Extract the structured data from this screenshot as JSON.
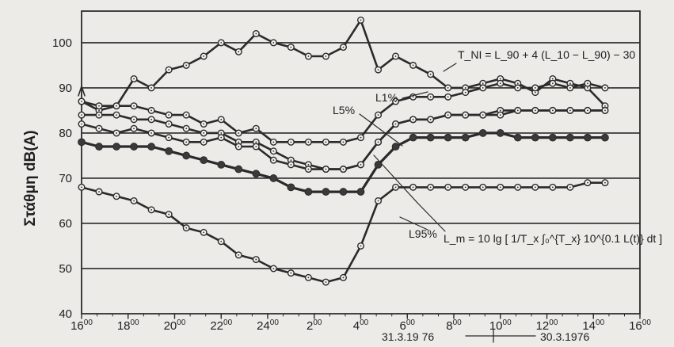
{
  "chart_data": {
    "type": "line",
    "ylabel": "Στάθμη dB(A)",
    "ylim": [
      40,
      107
    ],
    "yticks": [
      40,
      50,
      60,
      70,
      80,
      90,
      100
    ],
    "xlim": [
      0,
      30
    ],
    "xticks": [
      {
        "x": 0,
        "hour": "16",
        "min": "00"
      },
      {
        "x": 2.667,
        "hour": "18",
        "min": "00"
      },
      {
        "x": 5.333,
        "hour": "20",
        "min": "00"
      },
      {
        "x": 8,
        "hour": "22",
        "min": "00"
      },
      {
        "x": 10.667,
        "hour": "24",
        "min": "00"
      },
      {
        "x": 13.333,
        "hour": "2",
        "min": "00"
      },
      {
        "x": 16,
        "hour": "4",
        "min": "00"
      },
      {
        "x": 18.667,
        "hour": "6",
        "min": "00"
      },
      {
        "x": 21.333,
        "hour": "8",
        "min": "00"
      },
      {
        "x": 24,
        "hour": "10",
        "min": "00"
      },
      {
        "x": 26.667,
        "hour": "12",
        "min": "00"
      },
      {
        "x": 29.333,
        "hour": "14",
        "min": "00"
      },
      {
        "x": 32,
        "hour": "16",
        "min": "00"
      }
    ],
    "date_left": "31.3.19 76",
    "date_right": "30.3.1976",
    "grid": true,
    "series": [
      {
        "name": "T_NI",
        "marker": "open",
        "x": [
          0,
          1,
          2,
          3,
          4,
          5,
          6,
          7,
          8,
          9,
          10,
          11,
          12,
          13,
          14,
          15,
          16,
          17,
          18,
          19,
          20,
          21,
          22,
          23,
          24,
          25,
          26,
          27,
          28,
          29,
          30
        ],
        "values": [
          87,
          85,
          86,
          92,
          90,
          94,
          95,
          97,
          100,
          98,
          102,
          100,
          99,
          97,
          97,
          99,
          105,
          94,
          97,
          95,
          93,
          90,
          90,
          91,
          92,
          91,
          89,
          92,
          91,
          90,
          86
        ]
      },
      {
        "name": "L1%",
        "marker": "open",
        "x": [
          0,
          1,
          2,
          3,
          4,
          5,
          6,
          7,
          8,
          9,
          10,
          11,
          12,
          13,
          14,
          15,
          16,
          17,
          18,
          19,
          20,
          21,
          22,
          23,
          24,
          25,
          26,
          27,
          28,
          29,
          30
        ],
        "values": [
          87,
          86,
          86,
          86,
          85,
          84,
          84,
          82,
          83,
          80,
          81,
          78,
          78,
          78,
          78,
          78,
          79,
          84,
          87,
          88,
          88,
          88,
          89,
          90,
          91,
          90,
          90,
          91,
          90,
          91,
          90
        ]
      },
      {
        "name": "L5%",
        "marker": "open",
        "x": [
          0,
          1,
          2,
          3,
          4,
          5,
          6,
          7,
          8,
          9,
          10,
          11,
          12,
          13,
          14,
          15,
          16,
          17,
          18,
          19,
          20,
          21,
          22,
          23,
          24,
          25,
          26,
          27,
          28,
          29,
          30
        ],
        "values": [
          84,
          84,
          84,
          83,
          83,
          82,
          81,
          80,
          80,
          78,
          78,
          76,
          74,
          73,
          72,
          72,
          73,
          78,
          82,
          83,
          83,
          84,
          84,
          84,
          85,
          85,
          85,
          85,
          85,
          85,
          85
        ]
      },
      {
        "name": "L_m",
        "marker": "open",
        "x": [
          0,
          1,
          2,
          3,
          4,
          5,
          6,
          7,
          8,
          9,
          10,
          11,
          12,
          13,
          14,
          15,
          16,
          17,
          18,
          19,
          20,
          21,
          22,
          23,
          24,
          25,
          26,
          27,
          28,
          29,
          30
        ],
        "values": [
          82,
          81,
          80,
          81,
          80,
          79,
          78,
          78,
          79,
          77,
          77,
          74,
          73,
          72,
          72,
          72,
          73,
          78,
          82,
          83,
          83,
          84,
          84,
          84,
          84,
          85,
          85,
          85,
          85,
          85,
          85
        ]
      },
      {
        "name": "L_90",
        "marker": "solid",
        "x": [
          0,
          1,
          2,
          3,
          4,
          5,
          6,
          7,
          8,
          9,
          10,
          11,
          12,
          13,
          14,
          15,
          16,
          17,
          18,
          19,
          20,
          21,
          22,
          23,
          24,
          25,
          26,
          27,
          28,
          29,
          30
        ],
        "values": [
          78,
          77,
          77,
          77,
          77,
          76,
          75,
          74,
          73,
          72,
          71,
          70,
          68,
          67,
          67,
          67,
          67,
          73,
          77,
          79,
          79,
          79,
          79,
          80,
          80,
          79,
          79,
          79,
          79,
          79,
          79
        ]
      },
      {
        "name": "L95%",
        "marker": "open",
        "x": [
          0,
          1,
          2,
          3,
          4,
          5,
          6,
          7,
          8,
          9,
          10,
          11,
          12,
          13,
          14,
          15,
          16,
          17,
          18,
          19,
          20,
          21,
          22,
          23,
          24,
          25,
          26,
          27,
          28,
          29,
          30
        ],
        "values": [
          68,
          67,
          66,
          65,
          63,
          62,
          59,
          58,
          56,
          53,
          52,
          50,
          49,
          48,
          47,
          48,
          55,
          65,
          68,
          68,
          68,
          68,
          68,
          68,
          68,
          68,
          68,
          68,
          68,
          69,
          69
        ]
      }
    ],
    "annotations": {
      "tni_formula": "T_NI = L_90 + 4 (L_10 − L_90) − 30",
      "l1": "L1%",
      "l5": "L5%",
      "l95": "L95%",
      "lm_formula": "L_m = 10 lg [ 1/T_x ∫₀^{T_x} 10^{0.1 L(t)} dt ]"
    }
  }
}
